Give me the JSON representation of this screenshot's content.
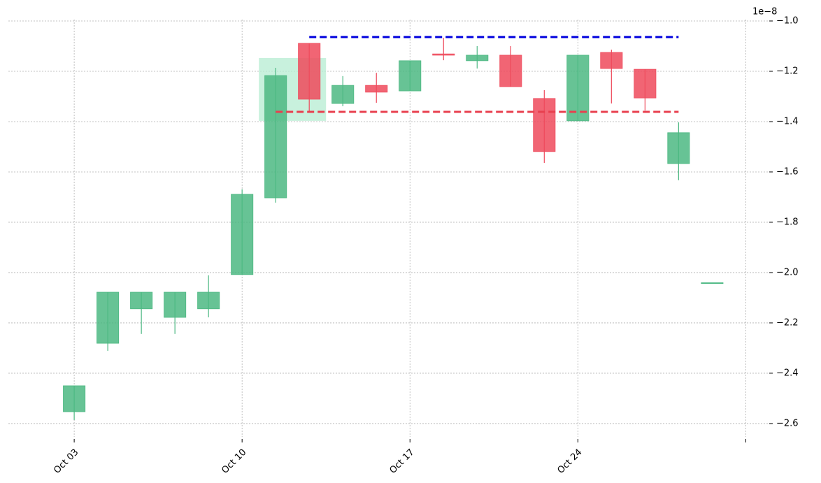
{
  "chart_data": {
    "type": "candlestick",
    "offset_label": "1e−8",
    "open": [
      -2.553,
      -2.281,
      -2.144,
      -2.178,
      -2.144,
      -2.008,
      -1.703,
      -1.089,
      -1.328,
      -1.256,
      -1.278,
      -1.131,
      -1.158,
      -1.136,
      -1.308,
      -1.397,
      -1.125,
      -1.192,
      -1.567,
      -2.042
    ],
    "high": [
      -2.45,
      -2.078,
      -2.078,
      -2.078,
      -2.011,
      -1.669,
      -1.186,
      -1.089,
      -1.219,
      -1.206,
      -1.158,
      -1.067,
      -1.1,
      -1.1,
      -1.275,
      -1.136,
      -1.114,
      -1.192,
      -1.403,
      -2.042
    ],
    "low": [
      -2.586,
      -2.311,
      -2.244,
      -2.244,
      -2.178,
      -2.008,
      -1.722,
      -1.361,
      -1.339,
      -1.325,
      -1.278,
      -1.156,
      -1.189,
      -1.261,
      -1.564,
      -1.397,
      -1.328,
      -1.356,
      -1.633,
      -2.042
    ],
    "close": [
      -2.45,
      -2.078,
      -2.078,
      -2.078,
      -2.078,
      -1.689,
      -1.217,
      -1.311,
      -1.256,
      -1.283,
      -1.158,
      -1.136,
      -1.136,
      -1.261,
      -1.519,
      -1.136,
      -1.189,
      -1.306,
      -1.444,
      -2.042
    ],
    "up_color": "#4cb882",
    "down_color": "#ee4a5c",
    "levels": [
      {
        "value": -1.064,
        "from": 7,
        "to": 18,
        "color": "#0000dd"
      },
      {
        "value": -1.361,
        "from": 6,
        "to": 18,
        "color": "#e8404f"
      }
    ],
    "highlight": {
      "from": 5.5,
      "to": 7.5,
      "low": -1.397,
      "high": -1.147,
      "color": "#b6ecd2"
    },
    "xlim": [
      -1.96,
      20.7
    ],
    "xticks": [
      {
        "value": 0,
        "label": "Oct 03"
      },
      {
        "value": 5,
        "label": "Oct 10"
      },
      {
        "value": 10,
        "label": "Oct 17"
      },
      {
        "value": 15,
        "label": "Oct 24"
      },
      {
        "value": 20,
        "label": null
      }
    ],
    "ylim": [
      -2.653,
      -0.95
    ],
    "yticks": [
      {
        "value": -1.0,
        "label": "−1.0"
      },
      {
        "value": -1.2,
        "label": "−1.2"
      },
      {
        "value": -1.4,
        "label": "−1.4"
      },
      {
        "value": -1.6,
        "label": "−1.6"
      },
      {
        "value": -1.8,
        "label": "−1.8"
      },
      {
        "value": -2.0,
        "label": "−2.0"
      },
      {
        "value": -2.2,
        "label": "−2.2"
      },
      {
        "value": -2.4,
        "label": "−2.4"
      },
      {
        "value": -2.6,
        "label": "−2.6"
      }
    ],
    "grid": true
  }
}
